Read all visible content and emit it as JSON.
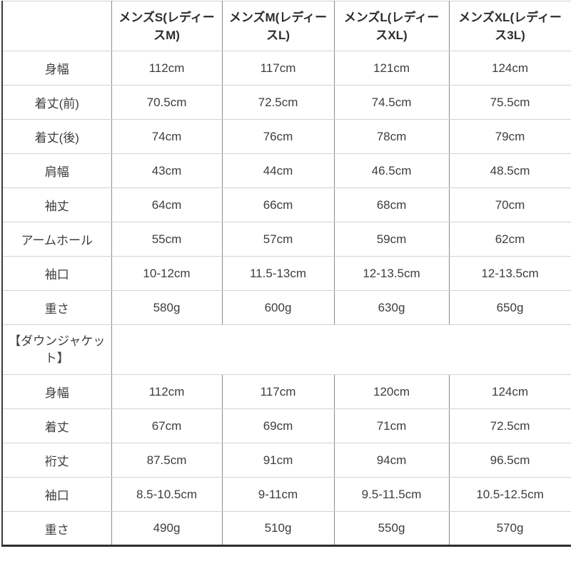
{
  "chart_data": {
    "type": "table",
    "title": "",
    "columns": [
      {
        "label": "",
        "lines": [
          ""
        ]
      },
      {
        "label": "メンズS(レディースM)",
        "lines": [
          "メンズS(レディー",
          "スM)"
        ]
      },
      {
        "label": "メンズM(レディースL)",
        "lines": [
          "メンズM(レディー",
          "スL)"
        ]
      },
      {
        "label": "メンズL(レディースXL)",
        "lines": [
          "メンズL(レディー",
          "スXL)"
        ]
      },
      {
        "label": "メンズXL(レディース3L)",
        "lines": [
          "メンズXL(レディー",
          "ス3L)"
        ]
      }
    ],
    "sections": [
      {
        "heading": {
          "label": "",
          "lines": []
        },
        "rows": [
          {
            "label": "身幅",
            "values": [
              "112cm",
              "117cm",
              "121cm",
              "124cm"
            ]
          },
          {
            "label": "着丈(前)",
            "values": [
              "70.5cm",
              "72.5cm",
              "74.5cm",
              "75.5cm"
            ]
          },
          {
            "label": "着丈(後)",
            "values": [
              "74cm",
              "76cm",
              "78cm",
              "79cm"
            ]
          },
          {
            "label": "肩幅",
            "values": [
              "43cm",
              "44cm",
              "46.5cm",
              "48.5cm"
            ]
          },
          {
            "label": "袖丈",
            "values": [
              "64cm",
              "66cm",
              "68cm",
              "70cm"
            ]
          },
          {
            "label": "アームホール",
            "values": [
              "55cm",
              "57cm",
              "59cm",
              "62cm"
            ]
          },
          {
            "label": "袖口",
            "values": [
              "10-12cm",
              "11.5-13cm",
              "12-13.5cm",
              "12-13.5cm"
            ]
          },
          {
            "label": "重さ",
            "values": [
              "580g",
              "600g",
              "630g",
              "650g"
            ]
          }
        ]
      },
      {
        "heading": {
          "label": "【ダウンジャケット】",
          "lines": [
            "【ダウンジャケッ",
            "ト】"
          ]
        },
        "rows": [
          {
            "label": "身幅",
            "values": [
              "112cm",
              "117cm",
              "120cm",
              "124cm"
            ]
          },
          {
            "label": "着丈",
            "values": [
              "67cm",
              "69cm",
              "71cm",
              "72.5cm"
            ]
          },
          {
            "label": "裄丈",
            "values": [
              "87.5cm",
              "91cm",
              "94cm",
              "96.5cm"
            ]
          },
          {
            "label": "袖口",
            "values": [
              "8.5-10.5cm",
              "9-11cm",
              "9.5-11.5cm",
              "10.5-12.5cm"
            ]
          },
          {
            "label": "重さ",
            "values": [
              "490g",
              "510g",
              "550g",
              "570g"
            ]
          }
        ]
      }
    ],
    "layout": {
      "grid": "on",
      "header_bold": true,
      "all_cells_centered": true
    }
  },
  "colors": {
    "background": "#ffffff",
    "text": "#3d3d3d",
    "header_text": "#2d2d2d",
    "border_horizontal": "#d2d2d2",
    "border_vertical": "#8a8a8a",
    "frame_dark": "#2e2e2e"
  }
}
